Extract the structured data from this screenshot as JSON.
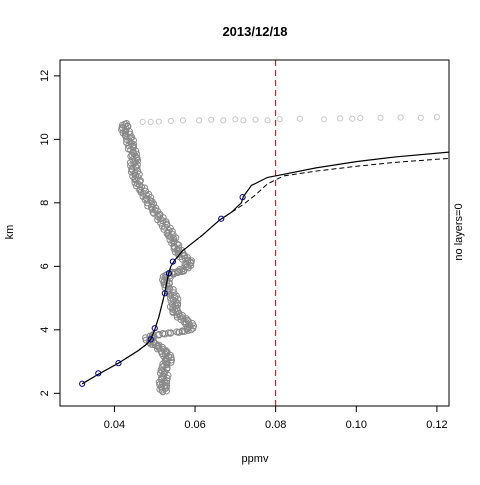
{
  "chart_data": {
    "type": "scatter",
    "title": "2013/12/18",
    "xlabel": "ppmv",
    "ylabel": "km",
    "right_label": "no layers=0",
    "xlim": [
      0.0265,
      0.123
    ],
    "ylim": [
      1.6,
      12.5
    ],
    "x_ticks": [
      0.04,
      0.06,
      0.08,
      0.1,
      0.12
    ],
    "x_tick_labels": [
      "0.04",
      "0.06",
      "0.08",
      "0.10",
      "0.12"
    ],
    "y_ticks": [
      2,
      4,
      6,
      8,
      10,
      12
    ],
    "y_tick_labels": [
      "2",
      "4",
      "6",
      "8",
      "10",
      "12"
    ],
    "grid": false,
    "threshold_x": 0.08,
    "colors": {
      "observations": "#888888",
      "observations_faint": "#c8c8c8",
      "fit_line": "#000000",
      "fit_points": "#00008b",
      "threshold": "#cc0000"
    },
    "observation_profile": [
      [
        0.052,
        2.05
      ],
      [
        0.0522,
        2.2
      ],
      [
        0.052,
        2.35
      ],
      [
        0.0525,
        2.5
      ],
      [
        0.0522,
        2.7
      ],
      [
        0.0528,
        2.9
      ],
      [
        0.0535,
        3.05
      ],
      [
        0.053,
        3.2
      ],
      [
        0.052,
        3.35
      ],
      [
        0.0505,
        3.5
      ],
      [
        0.049,
        3.6
      ],
      [
        0.0485,
        3.75
      ],
      [
        0.0505,
        3.85
      ],
      [
        0.054,
        3.9
      ],
      [
        0.0575,
        3.95
      ],
      [
        0.059,
        4.05
      ],
      [
        0.0585,
        4.2
      ],
      [
        0.057,
        4.35
      ],
      [
        0.0555,
        4.5
      ],
      [
        0.0545,
        4.65
      ],
      [
        0.055,
        4.8
      ],
      [
        0.0548,
        5.0
      ],
      [
        0.054,
        5.2
      ],
      [
        0.0532,
        5.4
      ],
      [
        0.0528,
        5.55
      ],
      [
        0.053,
        5.7
      ],
      [
        0.0548,
        5.8
      ],
      [
        0.0565,
        5.85
      ],
      [
        0.058,
        6.0
      ],
      [
        0.0585,
        6.15
      ],
      [
        0.057,
        6.3
      ],
      [
        0.056,
        6.45
      ],
      [
        0.0555,
        6.6
      ],
      [
        0.0548,
        6.8
      ],
      [
        0.054,
        7.0
      ],
      [
        0.053,
        7.2
      ],
      [
        0.052,
        7.4
      ],
      [
        0.0508,
        7.6
      ],
      [
        0.0495,
        7.8
      ],
      [
        0.0488,
        8.0
      ],
      [
        0.048,
        8.2
      ],
      [
        0.047,
        8.4
      ],
      [
        0.046,
        8.6
      ],
      [
        0.0455,
        8.8
      ],
      [
        0.045,
        9.0
      ],
      [
        0.0448,
        9.2
      ],
      [
        0.045,
        9.4
      ],
      [
        0.0445,
        9.6
      ],
      [
        0.044,
        9.8
      ],
      [
        0.0438,
        10.0
      ],
      [
        0.043,
        10.2
      ],
      [
        0.0425,
        10.35
      ],
      [
        0.043,
        10.5
      ]
    ],
    "upper_observations": [
      [
        0.047,
        10.55
      ],
      [
        0.049,
        10.55
      ],
      [
        0.051,
        10.56
      ],
      [
        0.054,
        10.58
      ],
      [
        0.057,
        10.6
      ],
      [
        0.061,
        10.6
      ],
      [
        0.064,
        10.62
      ],
      [
        0.067,
        10.6
      ],
      [
        0.07,
        10.63
      ],
      [
        0.072,
        10.6
      ],
      [
        0.075,
        10.62
      ],
      [
        0.078,
        10.6
      ],
      [
        0.081,
        10.64
      ],
      [
        0.086,
        10.65
      ],
      [
        0.092,
        10.63
      ],
      [
        0.096,
        10.66
      ],
      [
        0.099,
        10.65
      ],
      [
        0.101,
        10.67
      ],
      [
        0.106,
        10.68
      ],
      [
        0.111,
        10.69
      ],
      [
        0.116,
        10.68
      ],
      [
        0.12,
        10.7
      ]
    ],
    "fit_solid": [
      [
        0.032,
        2.3
      ],
      [
        0.036,
        2.6
      ],
      [
        0.041,
        2.95
      ],
      [
        0.046,
        3.35
      ],
      [
        0.048,
        3.55
      ],
      [
        0.049,
        3.7
      ],
      [
        0.05,
        4.0
      ],
      [
        0.051,
        4.4
      ],
      [
        0.052,
        4.9
      ],
      [
        0.0525,
        5.15
      ],
      [
        0.053,
        5.5
      ],
      [
        0.0535,
        5.8
      ],
      [
        0.054,
        6.0
      ],
      [
        0.055,
        6.2
      ],
      [
        0.057,
        6.5
      ],
      [
        0.062,
        7.0
      ],
      [
        0.066,
        7.45
      ],
      [
        0.069,
        7.7
      ],
      [
        0.0715,
        8.0
      ],
      [
        0.072,
        8.2
      ],
      [
        0.074,
        8.55
      ],
      [
        0.078,
        8.8
      ],
      [
        0.082,
        8.9
      ],
      [
        0.09,
        9.1
      ],
      [
        0.1,
        9.3
      ],
      [
        0.11,
        9.45
      ],
      [
        0.123,
        9.6
      ]
    ],
    "fit_dashed": [
      [
        0.032,
        2.3
      ],
      [
        0.036,
        2.6
      ],
      [
        0.041,
        2.95
      ],
      [
        0.046,
        3.35
      ],
      [
        0.048,
        3.55
      ],
      [
        0.049,
        3.7
      ],
      [
        0.05,
        4.0
      ],
      [
        0.051,
        4.4
      ],
      [
        0.052,
        4.9
      ],
      [
        0.0525,
        5.15
      ],
      [
        0.053,
        5.5
      ],
      [
        0.0535,
        5.8
      ],
      [
        0.054,
        6.0
      ],
      [
        0.055,
        6.2
      ],
      [
        0.057,
        6.5
      ],
      [
        0.062,
        7.0
      ],
      [
        0.066,
        7.45
      ],
      [
        0.069,
        7.7
      ],
      [
        0.072,
        7.95
      ],
      [
        0.075,
        8.25
      ],
      [
        0.078,
        8.6
      ],
      [
        0.082,
        8.85
      ],
      [
        0.09,
        9.0
      ],
      [
        0.1,
        9.15
      ],
      [
        0.11,
        9.28
      ],
      [
        0.123,
        9.4
      ]
    ],
    "fit_points": [
      [
        0.032,
        2.3
      ],
      [
        0.036,
        2.63
      ],
      [
        0.041,
        2.95
      ],
      [
        0.049,
        3.7
      ],
      [
        0.05,
        4.05
      ],
      [
        0.0525,
        5.15
      ],
      [
        0.0535,
        5.78
      ],
      [
        0.0545,
        6.15
      ],
      [
        0.0665,
        7.5
      ],
      [
        0.0718,
        8.18
      ]
    ]
  }
}
